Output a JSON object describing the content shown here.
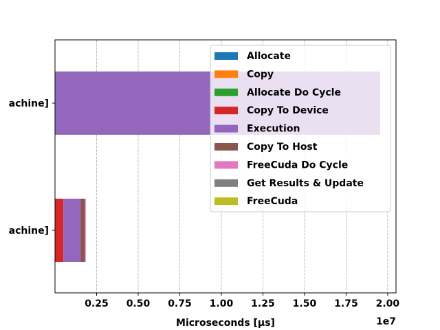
{
  "chart_data": {
    "type": "bar",
    "orientation": "horizontal",
    "stacked": true,
    "categories": [
      "[... achine]",
      "[... achine]"
    ],
    "category_labels_visible": [
      "achine]",
      "achine]"
    ],
    "xlabel": "Microseconds [μs]",
    "x_scale_label": "1e7",
    "x_ticks": [
      0.25,
      0.5,
      0.75,
      1.0,
      1.25,
      1.5,
      1.75,
      2.0
    ],
    "x_tick_labels": [
      "0.25",
      "0.50",
      "0.75",
      "1.00",
      "1.25",
      "1.50",
      "1.75",
      "2.00"
    ],
    "xlim": [
      0,
      2.05
    ],
    "grid": "x-dashed",
    "legend_position": "top-right",
    "series": [
      {
        "name": "Allocate",
        "color": "#1f77b4",
        "values": [
          0.0,
          0.0
        ]
      },
      {
        "name": "Copy",
        "color": "#ff7f0e",
        "values": [
          0.0,
          0.0
        ]
      },
      {
        "name": "Allocate Do Cycle",
        "color": "#2ca02c",
        "values": [
          0.0,
          0.0
        ]
      },
      {
        "name": "Copy To Device",
        "color": "#d62728",
        "values": [
          0.05,
          0.0
        ]
      },
      {
        "name": "Execution",
        "color": "#9467bd",
        "values": [
          0.105,
          1.955
        ]
      },
      {
        "name": "Copy To Host",
        "color": "#8c564b",
        "values": [
          0.025,
          0.0
        ]
      },
      {
        "name": "FreeCuda Do Cycle",
        "color": "#e377c2",
        "values": [
          0.005,
          0.0
        ]
      },
      {
        "name": "Get Results & Update",
        "color": "#7f7f7f",
        "values": [
          0.0,
          0.0
        ]
      },
      {
        "name": "FreeCuda",
        "color": "#bcbd22",
        "values": [
          0.0,
          0.0
        ]
      }
    ]
  }
}
